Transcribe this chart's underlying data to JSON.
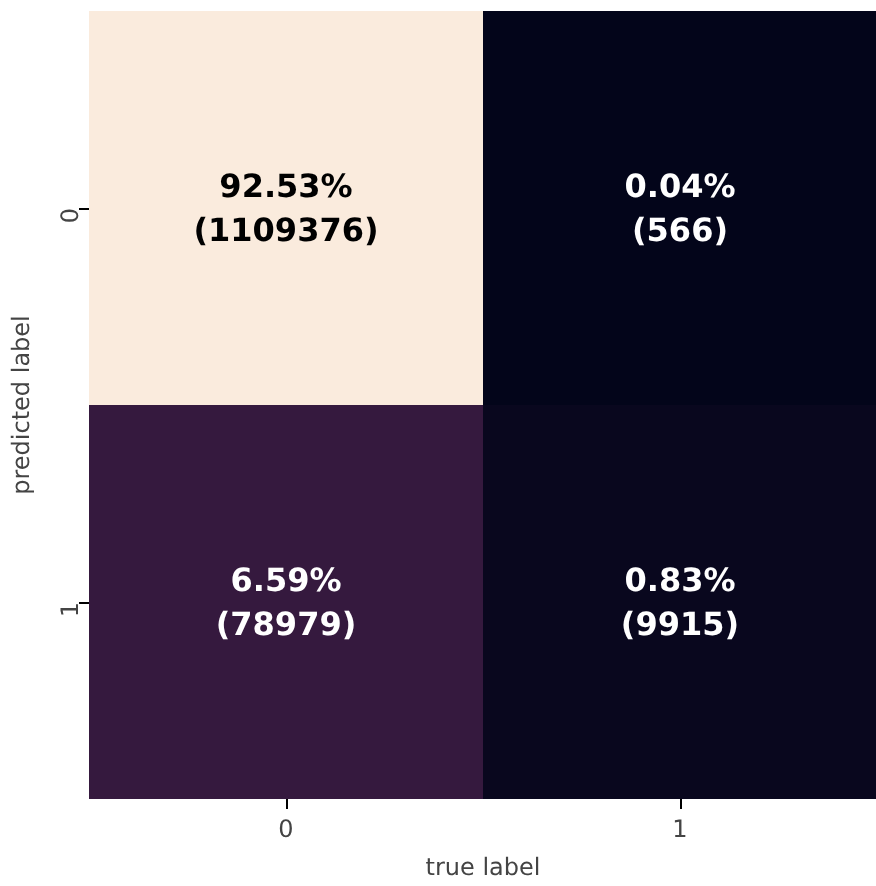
{
  "chart_data": {
    "type": "heatmap",
    "xlabel": "true label",
    "ylabel": "predicted label",
    "categories": [
      "0",
      "1"
    ],
    "y_categories": [
      "0",
      "1"
    ],
    "cells": [
      [
        92.53,
        0.04
      ],
      [
        6.59,
        0.83
      ]
    ],
    "cell_labels": [
      [
        "92.53%",
        "0.04%"
      ],
      [
        "6.59%",
        "0.83%"
      ]
    ],
    "annotations": [
      "(1109376)",
      "(566)",
      "(78979)",
      "(9915)"
    ]
  }
}
